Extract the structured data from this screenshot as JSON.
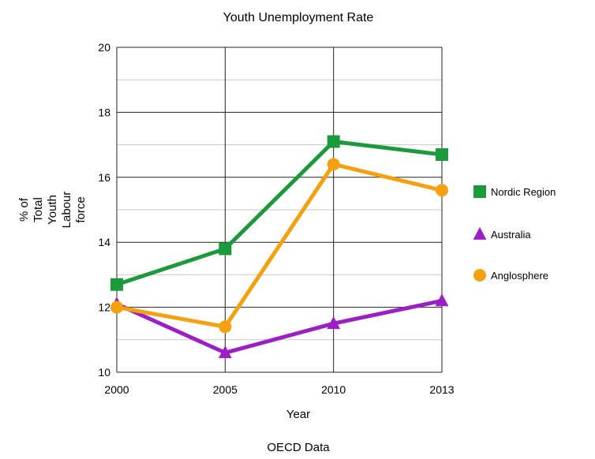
{
  "chart_data": {
    "type": "line",
    "title": "Youth Unemployment Rate",
    "xlabel": "Year",
    "ylabel_lines": [
      "% of",
      "Total",
      "Youth",
      "Labour",
      "force"
    ],
    "footer": "OECD Data",
    "categories": [
      "2000",
      "2005",
      "2010",
      "2013"
    ],
    "ylim": [
      10,
      20
    ],
    "yticks": [
      10,
      12,
      14,
      16,
      18,
      20
    ],
    "minor_grid": true,
    "grid": true,
    "legend_position": "right",
    "series": [
      {
        "name": "Nordic Region",
        "values": [
          12.7,
          13.8,
          17.1,
          16.7
        ],
        "color": "#1a9a3a",
        "marker": "square"
      },
      {
        "name": "Australia",
        "values": [
          12.1,
          10.6,
          11.5,
          12.2
        ],
        "color": "#9b1fc4",
        "marker": "triangle"
      },
      {
        "name": "Anglosphere",
        "values": [
          12.0,
          11.4,
          16.4,
          15.6
        ],
        "color": "#f5a10f",
        "marker": "circle"
      }
    ]
  }
}
